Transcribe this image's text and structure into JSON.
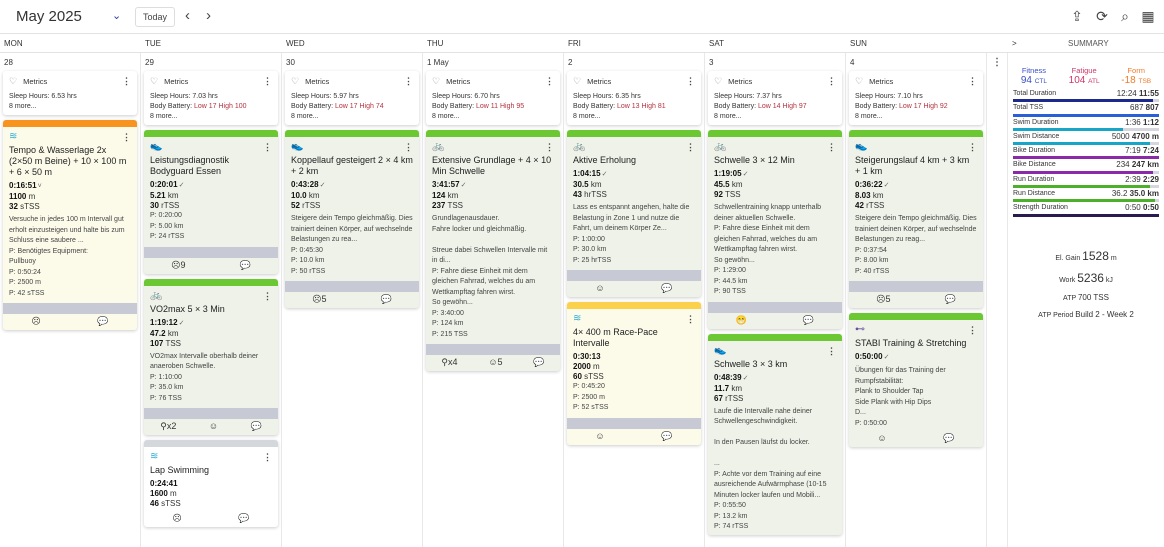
{
  "header": {
    "month": "May 2025",
    "today": "Today",
    "icons": [
      "upload-icon",
      "sync-icon",
      "search-icon",
      "calendar-settings-icon"
    ]
  },
  "day_names": [
    "MON",
    "TUE",
    "WED",
    "THU",
    "FRI",
    "SAT",
    "SUN"
  ],
  "summary_toggle": ">",
  "summary_label": "SUMMARY",
  "colors": {
    "green": "#6cc832",
    "orange": "#f7931e",
    "yellow": "#fbd14b",
    "gray": "#d4d7dc"
  },
  "days": [
    {
      "num": "28",
      "metrics": {
        "label": "Metrics",
        "sleep": "Sleep Hours: 6.53 hrs",
        "more": "8 more..."
      },
      "workouts": [
        {
          "status": "orange",
          "bg": "y",
          "sport": "swim",
          "title": "Tempo & Wasserlage 2x (2×50 m Beine) + 10 × 100 m + 6 × 50 m",
          "duration": "0:16:51",
          "check": "˅",
          "dist": "1100",
          "dist_unit": "m",
          "tss": "32",
          "tss_unit": "sTSS",
          "desc": "Versuche in jedes 100 m Intervall gut erholt einzusteigen und halte bis zum Schluss eine saubere ...",
          "planned": [
            "P: Benötigtes Equipment:",
            "Pullbuoy",
            "P: 0:50:24",
            "P: 2500 m",
            "P: 42 sTSS"
          ],
          "profile": true,
          "foot": [
            "☹",
            "💬"
          ]
        }
      ]
    },
    {
      "num": "29",
      "metrics": {
        "label": "Metrics",
        "sleep": "Sleep Hours: 7.03 hrs",
        "bb_label": "Body Battery:",
        "bb": "Low 17 High 100",
        "more": "8 more..."
      },
      "workouts": [
        {
          "status": "green",
          "bg": "g",
          "sport": "run",
          "title": "Leistungsdiagnostik Bodyguard Essen",
          "duration": "0:20:01",
          "check": "✓",
          "dist": "5.21",
          "dist_unit": "km",
          "tss": "30",
          "tss_unit": "rTSS",
          "planned": [
            "P: 0:20:00",
            "P: 5.00 km",
            "P: 24 rTSS"
          ],
          "profile": true,
          "foot": [
            "☹9",
            "💬"
          ]
        },
        {
          "status": "green",
          "bg": "g",
          "sport": "bike",
          "title": "VO2max 5 × 3 Min",
          "duration": "1:19:12",
          "check": "✓",
          "dist": "47.2",
          "dist_unit": "km",
          "tss": "107",
          "tss_unit": "TSS",
          "desc": "VO2max Intervalle oberhalb deiner anaeroben Schwelle.",
          "planned": [
            "P: 1:10:00",
            "P: 35.0 km",
            "P: 76 TSS"
          ],
          "profile": true,
          "foot": [
            "⚲x2",
            "☺",
            "💬"
          ]
        },
        {
          "status": "gray",
          "bg": "w",
          "sport": "swim",
          "title": "Lap Swimming",
          "duration": "0:24:41",
          "dist": "1600",
          "dist_unit": "m",
          "tss": "46",
          "tss_unit": "sTSS",
          "foot": [
            "☹",
            "💬"
          ]
        }
      ]
    },
    {
      "num": "30",
      "metrics": {
        "label": "Metrics",
        "sleep": "Sleep Hours: 5.97 hrs",
        "bb_label": "Body Battery:",
        "bb": "Low 17 High 74",
        "more": "8 more..."
      },
      "workouts": [
        {
          "status": "green",
          "bg": "g",
          "sport": "run",
          "title": "Koppellauf gesteigert 2 × 4 km + 2 km",
          "duration": "0:43:28",
          "check": "✓",
          "dist": "10.0",
          "dist_unit": "km",
          "tss": "52",
          "tss_unit": "rTSS",
          "desc": "Steigere dein Tempo gleichmäßig. Dies trainiert deinen Körper, auf wechselnde Belastungen zu rea...",
          "planned": [
            "P: 0:45:30",
            "P: 10.0 km",
            "P: 50 rTSS"
          ],
          "profile": true,
          "foot": [
            "☹5",
            "💬"
          ]
        }
      ]
    },
    {
      "num": "1 May",
      "metrics": {
        "label": "Metrics",
        "sleep": "Sleep Hours: 6.70 hrs",
        "bb_label": "Body Battery:",
        "bb": "Low 11 High 95",
        "more": "8 more..."
      },
      "workouts": [
        {
          "status": "green",
          "bg": "g",
          "sport": "bike",
          "title": "Extensive Grundlage + 4 × 10 Min Schwelle",
          "duration": "3:41:57",
          "check": "✓",
          "dist": "124",
          "dist_unit": "km",
          "tss": "237",
          "tss_unit": "TSS",
          "desc": "Grundlagenausdauer.\nFahre locker und gleichmäßig.\n\nStreue dabei Schwellen Intervalle mit in di...",
          "planned": [
            "P: Fahre diese Einheit mit dem gleichen Fahrrad, welches du am Wettkampftag fahren wirst.",
            "So gewöhn...",
            "P: 3:40:00",
            "P: 124 km",
            "P: 215 TSS"
          ],
          "profile": true,
          "foot": [
            "⚲x4",
            "☺5",
            "💬"
          ]
        }
      ]
    },
    {
      "num": "2",
      "metrics": {
        "label": "Metrics",
        "sleep": "Sleep Hours: 6.35 hrs",
        "bb_label": "Body Battery:",
        "bb": "Low 13 High 81",
        "more": "8 more..."
      },
      "workouts": [
        {
          "status": "green",
          "bg": "g",
          "sport": "bike",
          "title": "Aktive Erholung",
          "duration": "1:04:15",
          "check": "✓",
          "dist": "30.5",
          "dist_unit": "km",
          "tss": "43",
          "tss_unit": "hrTSS",
          "desc": "Lass es entspannt angehen, halte die Belastung in Zone 1 und nutze die Fahrt, um deinem Körper Ze...",
          "planned": [
            "P: 1:00:00",
            "P: 30.0 km",
            "P: 25 hrTSS"
          ],
          "profile": true,
          "foot": [
            "☺",
            "💬"
          ]
        },
        {
          "status": "yellow",
          "bg": "y",
          "sport": "swim",
          "title": "4× 400 m Race-Pace Intervalle",
          "duration": "0:30:13",
          "dist": "2000",
          "dist_unit": "m",
          "tss": "60",
          "tss_unit": "sTSS",
          "planned": [
            "P: 0:45:20",
            "P: 2500 m",
            "P: 52 sTSS"
          ],
          "profile": true,
          "foot": [
            "☺",
            "💬"
          ]
        }
      ]
    },
    {
      "num": "3",
      "metrics": {
        "label": "Metrics",
        "sleep": "Sleep Hours: 7.37 hrs",
        "bb_label": "Body Battery:",
        "bb": "Low 14 High 97",
        "more": "8 more..."
      },
      "workouts": [
        {
          "status": "green",
          "bg": "g",
          "sport": "bike",
          "title": "Schwelle 3 × 12 Min",
          "duration": "1:19:05",
          "check": "✓",
          "dist": "45.5",
          "dist_unit": "km",
          "tss": "92",
          "tss_unit": "TSS",
          "desc": "Schwellentraining knapp unterhalb deiner aktuellen Schwelle.",
          "planned": [
            "P: Fahre diese Einheit mit dem gleichen Fahrrad, welches du am Wettkampftag fahren wirst.",
            "So gewöhn...",
            "P: 1:29:00",
            "P: 44.5 km",
            "P: 90 TSS"
          ],
          "profile": true,
          "foot": [
            "😁",
            "💬"
          ]
        },
        {
          "status": "green",
          "bg": "g",
          "sport": "run",
          "title": "Schwelle 3 × 3 km",
          "duration": "0:48:39",
          "check": "✓",
          "dist": "11.7",
          "dist_unit": "km",
          "tss": "67",
          "tss_unit": "rTSS",
          "desc": "Laufe die Intervalle nahe deiner Schwellengeschwindigkeit.\n\nIn den Pausen läufst du locker.\n\n...",
          "planned": [
            "P: Achte vor dem Training auf eine ausreichende Aufwärmphase (10-15 Minuten locker laufen und Mobili...",
            "P: 0:55:50",
            "P: 13.2 km",
            "P: 74 rTSS"
          ]
        }
      ]
    },
    {
      "num": "4",
      "metrics": {
        "label": "Metrics",
        "sleep": "Sleep Hours: 7.10 hrs",
        "bb_label": "Body Battery:",
        "bb": "Low 17 High 92",
        "more": "8 more..."
      },
      "workouts": [
        {
          "status": "green",
          "bg": "g",
          "sport": "run",
          "title": "Steigerungslauf 4 km + 3 km + 1 km",
          "duration": "0:36:22",
          "check": "✓",
          "dist": "8.03",
          "dist_unit": "km",
          "tss": "42",
          "tss_unit": "rTSS",
          "desc": "Steigere dein Tempo gleichmäßig. Dies trainiert deinen Körper, auf wechselnde Belastungen zu reag...",
          "planned": [
            "P: 0:37:54",
            "P: 8.00 km",
            "P: 40 rTSS"
          ],
          "profile": true,
          "foot": [
            "☹5",
            "💬"
          ]
        },
        {
          "status": "green",
          "bg": "g",
          "sport": "strength",
          "title": "STABI Training & Stretching",
          "duration": "0:50:00",
          "check": "✓",
          "desc": "Übungen für das Training der Rumpfstabilität:\nPlank to Shoulder Tap\nSide Plank with Hip Dips\nD...",
          "planned": [
            "P: 0:50:00"
          ],
          "foot": [
            "☺",
            "💬"
          ]
        }
      ]
    }
  ],
  "summary": {
    "pmc": [
      {
        "label": "Fitness",
        "value": "94",
        "unit": "CTL",
        "color": "#3b4fc4"
      },
      {
        "label": "Fatigue",
        "value": "104",
        "unit": "ATL",
        "color": "#d0346c"
      },
      {
        "label": "Form",
        "value": "-18",
        "unit": "TSB",
        "color": "#f07a2a"
      }
    ],
    "rows": [
      {
        "label": "Total Duration",
        "planned": "12:24",
        "actual": "11:55",
        "fill": 0.96,
        "color": "#1b2a8c"
      },
      {
        "label": "Total TSS",
        "planned": "687",
        "actual": "807",
        "fill": 1.0,
        "color": "#2a5fd6"
      },
      {
        "label": "Swim Duration",
        "planned": "1:36",
        "actual": "1:12",
        "fill": 0.75,
        "color": "#17a5c8"
      },
      {
        "label": "Swim Distance",
        "planned": "5000",
        "actual": "4700 m",
        "fill": 0.94,
        "color": "#17a5c8"
      },
      {
        "label": "Bike Duration",
        "planned": "7:19",
        "actual": "7:24",
        "fill": 1.0,
        "color": "#8b2aa9"
      },
      {
        "label": "Bike Distance",
        "planned": "234",
        "actual": "247 km",
        "fill": 0.96,
        "color": "#8b2aa9"
      },
      {
        "label": "Run Duration",
        "planned": "2:39",
        "actual": "2:29",
        "fill": 0.94,
        "color": "#4cb02a"
      },
      {
        "label": "Run Distance",
        "planned": "36.2",
        "actual": "35.0 km",
        "fill": 0.97,
        "color": "#4cb02a"
      },
      {
        "label": "Strength Duration",
        "planned": "0:50",
        "actual": "0:50",
        "fill": 1.0,
        "color": "#2b1a4f"
      }
    ],
    "extras": [
      {
        "label": "El. Gain",
        "value": "1528",
        "unit": "m"
      },
      {
        "label": "Work",
        "value": "5236",
        "unit": "kJ"
      },
      {
        "label": "ATP",
        "value": "700 TSS",
        "unit": ""
      },
      {
        "label": "ATP Period",
        "value": "Build 2 - Week 2",
        "unit": ""
      }
    ]
  }
}
